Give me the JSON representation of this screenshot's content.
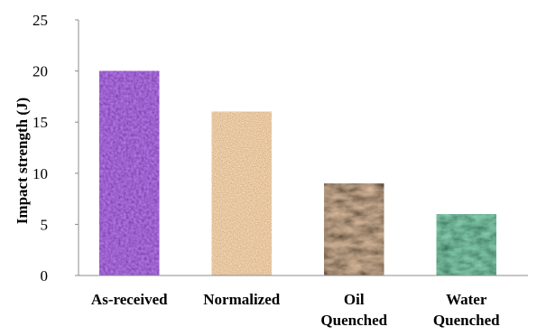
{
  "chart_data": {
    "type": "bar",
    "categories": [
      [
        "As-received"
      ],
      [
        "Normalized"
      ],
      [
        "Oil",
        "Quenched"
      ],
      [
        "Water",
        "Quenched"
      ]
    ],
    "values": [
      20,
      16,
      9,
      6
    ],
    "ylabel": "Impact strength (J)",
    "xlabel": "",
    "ylim": [
      0,
      25
    ],
    "yticks": [
      0,
      5,
      10,
      15,
      20,
      25
    ],
    "grid": false,
    "legend": "none",
    "bar_colors": [
      "#4a1a80",
      "#c0946a",
      "#4e3424",
      "#1c5a3a"
    ],
    "bar_textures": [
      "purple-fabric",
      "cork",
      "dark-brown-marble",
      "green-marble"
    ]
  }
}
